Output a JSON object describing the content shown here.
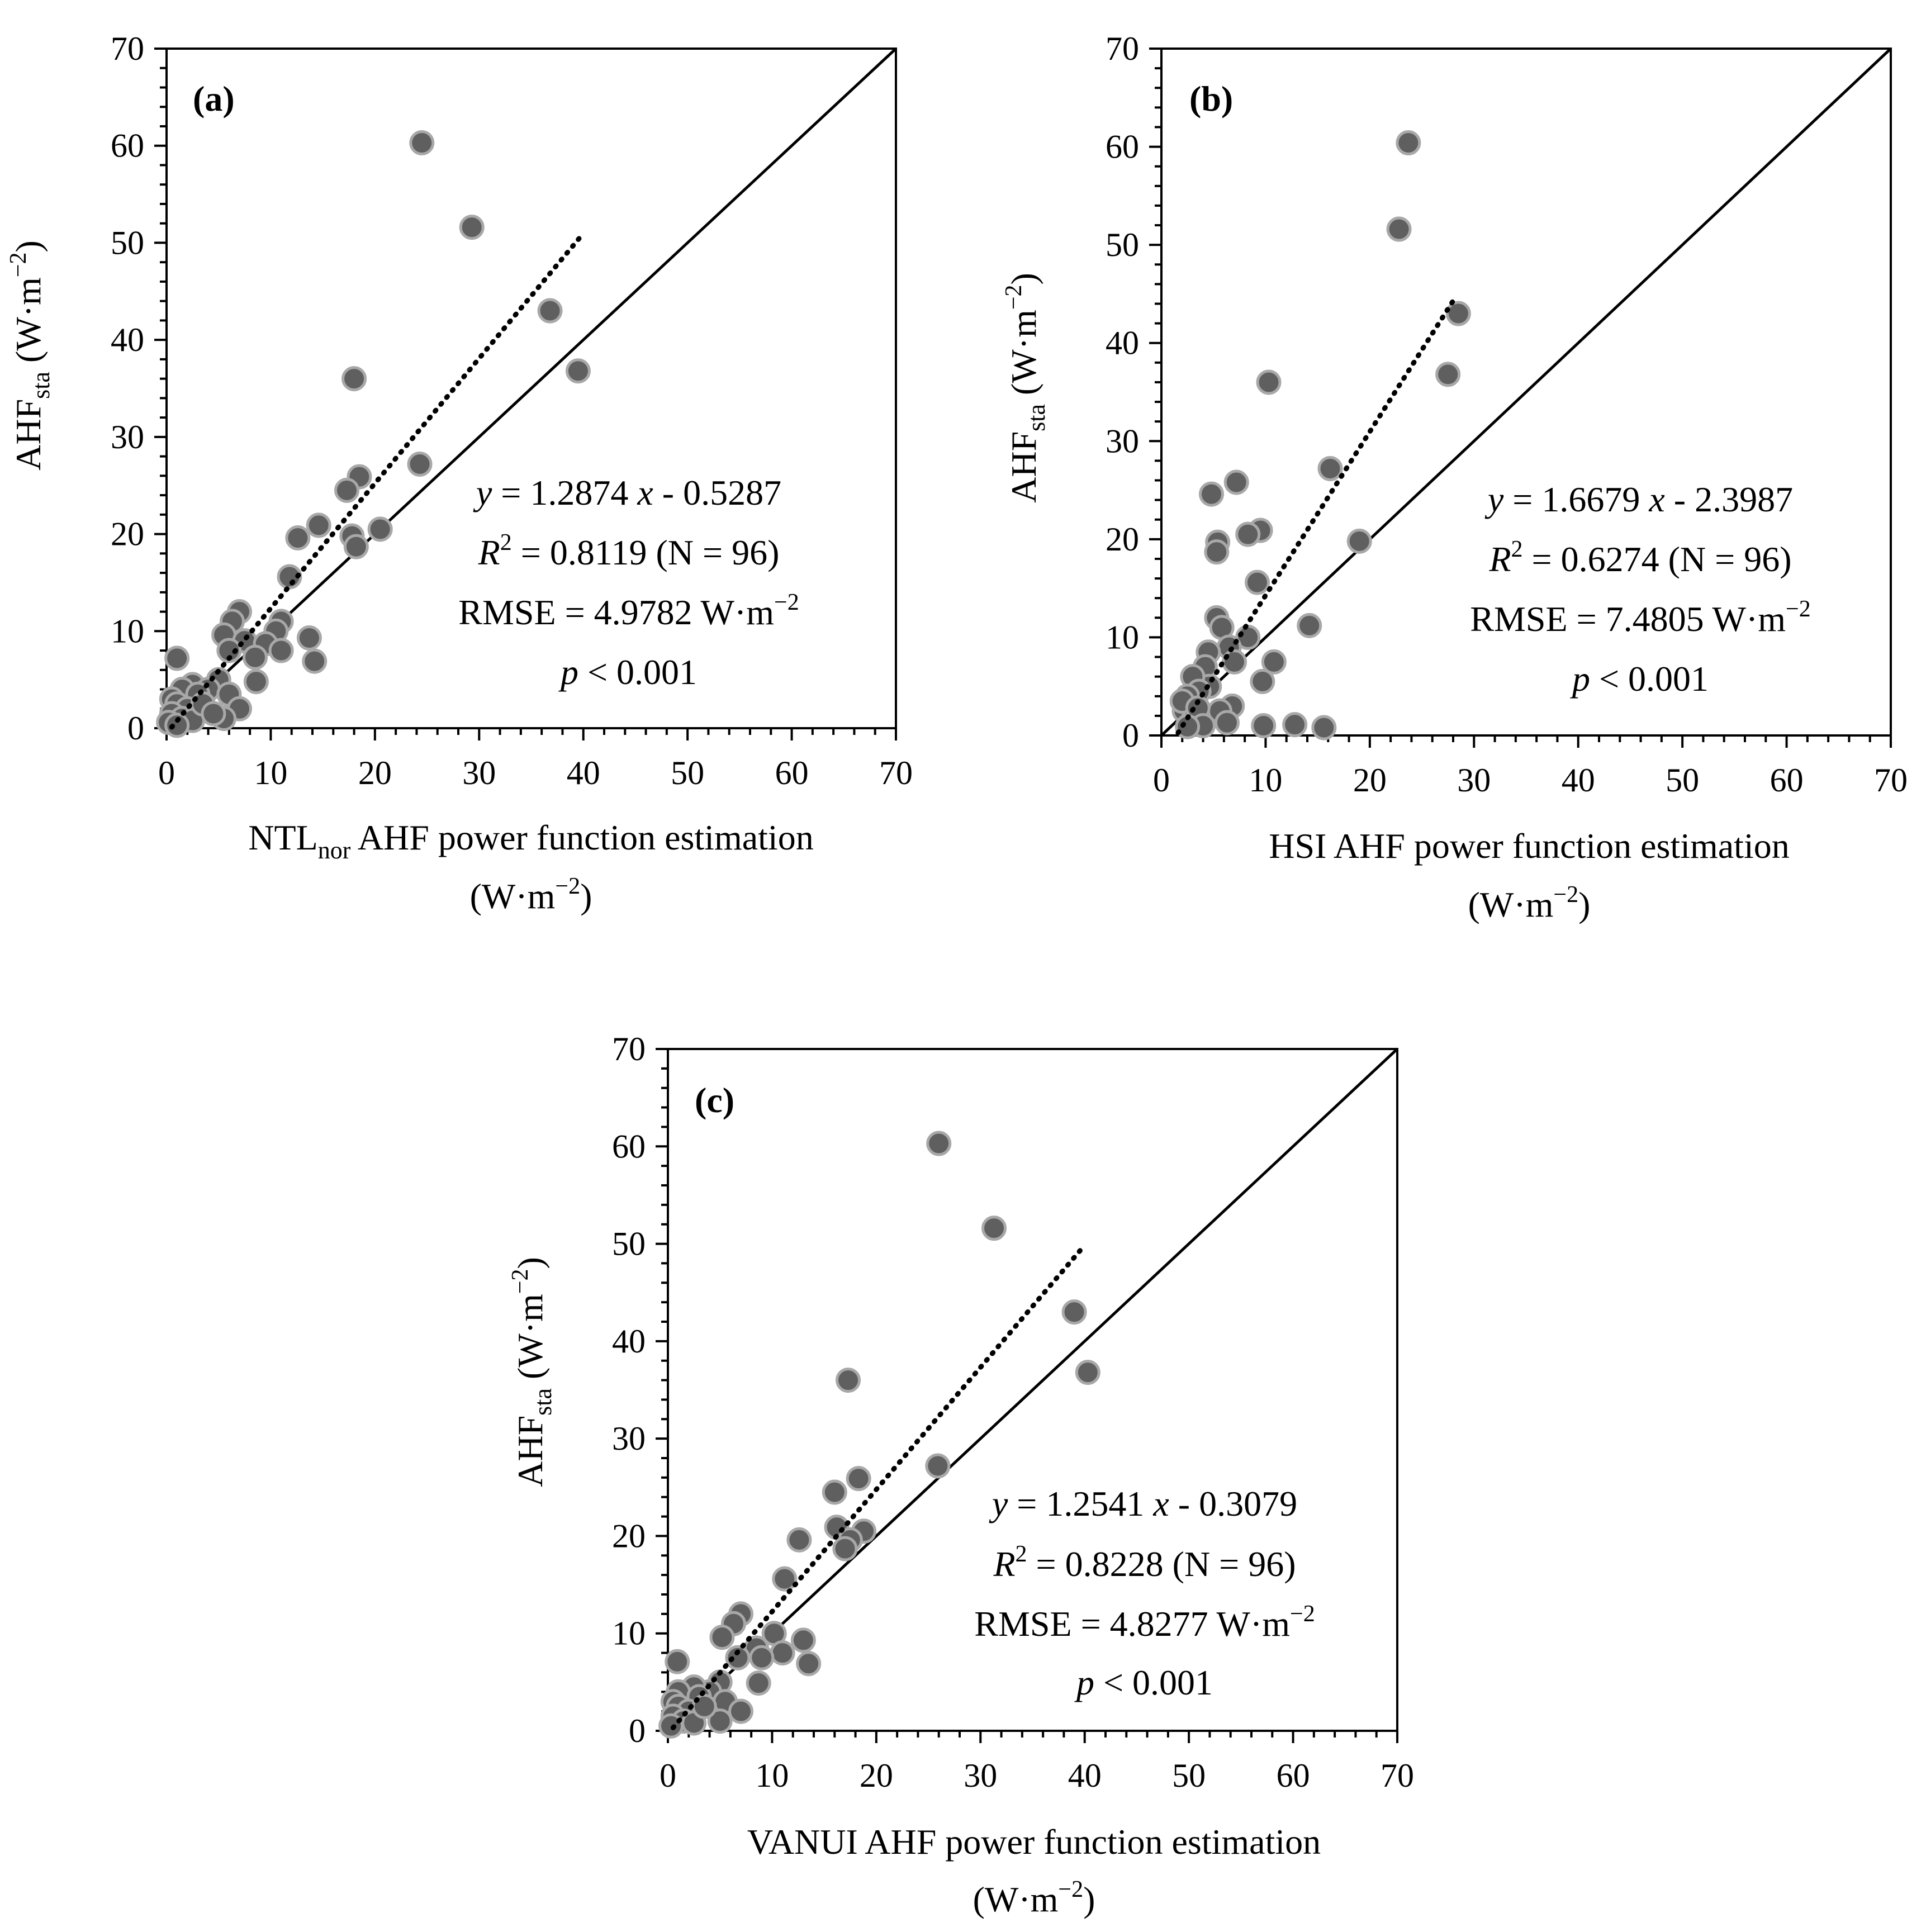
{
  "figure": {
    "chart_data": [
      {
        "type": "scatter",
        "panel": "(a)",
        "xlabel": "NTL",
        "xlabel_sub": "nor",
        "xlabel_rest": " AHF power function estimation",
        "xlabel_units": "(W·m",
        "units_exp": "−2",
        "units_close": ")",
        "ylabel": "AHF",
        "ylabel_sub": "sta",
        "ylabel_units": " (W·m",
        "xlim": [
          0,
          70
        ],
        "ylim": [
          0,
          70
        ],
        "xticks": [
          0,
          10,
          20,
          30,
          40,
          50,
          60,
          70
        ],
        "yticks": [
          0,
          10,
          20,
          30,
          40,
          50,
          60,
          70
        ],
        "fit": {
          "slope": 1.2874,
          "intercept": -0.5287,
          "x_range": [
            0.5,
            39.7
          ]
        },
        "stats": {
          "eq_y": "y",
          "eq_mid": " = 1.2874 ",
          "eq_x": "x",
          "eq_tail": " - 0.5287",
          "r2_R": "R",
          "r2_exp": "2",
          "r2_tail": " = 0.8119 (N = 96)",
          "rmse": "RMSE = 4.9782 W·m",
          "rmse_exp": "−2",
          "p_p": "p",
          "p_tail": " < 0.001"
        },
        "points": [
          [
            24.5,
            60.3
          ],
          [
            29.3,
            51.6
          ],
          [
            36.8,
            43.0
          ],
          [
            39.5,
            36.8
          ],
          [
            18.0,
            36.0
          ],
          [
            24.3,
            27.2
          ],
          [
            18.5,
            25.9
          ],
          [
            17.3,
            24.5
          ],
          [
            14.6,
            20.9
          ],
          [
            12.6,
            19.6
          ],
          [
            20.5,
            20.5
          ],
          [
            17.8,
            19.8
          ],
          [
            18.2,
            18.7
          ],
          [
            11.8,
            15.6
          ],
          [
            7.0,
            12.0
          ],
          [
            6.3,
            11.0
          ],
          [
            11.0,
            11.0
          ],
          [
            5.5,
            9.6
          ],
          [
            13.7,
            9.3
          ],
          [
            10.5,
            10.0
          ],
          [
            7.5,
            9.0
          ],
          [
            9.5,
            8.7
          ],
          [
            11.0,
            8.0
          ],
          [
            6.0,
            8.0
          ],
          [
            8.5,
            7.3
          ],
          [
            14.2,
            6.9
          ],
          [
            1.0,
            7.2
          ],
          [
            5.0,
            5.0
          ],
          [
            8.6,
            4.8
          ],
          [
            2.5,
            4.5
          ],
          [
            4.0,
            4.0
          ],
          [
            1.5,
            4.0
          ],
          [
            3.0,
            3.5
          ],
          [
            6.0,
            3.5
          ],
          [
            0.5,
            3.0
          ],
          [
            1.0,
            2.5
          ],
          [
            2.0,
            2.0
          ],
          [
            7.0,
            2.0
          ],
          [
            0.5,
            1.5
          ],
          [
            1.5,
            1.0
          ],
          [
            2.5,
            0.8
          ],
          [
            0.2,
            0.6
          ],
          [
            5.5,
            1.0
          ],
          [
            3.5,
            2.5
          ],
          [
            4.5,
            1.5
          ],
          [
            1.0,
            0.3
          ]
        ]
      },
      {
        "type": "scatter",
        "panel": "(b)",
        "xlabel": "HSI AHF power function estimation",
        "xlabel_units": "(W·m",
        "units_exp": "−2",
        "units_close": ")",
        "ylabel": "AHF",
        "ylabel_sub": "sta",
        "ylabel_units": " (W·m",
        "xlim": [
          0,
          70
        ],
        "ylim": [
          0,
          70
        ],
        "xticks": [
          0,
          10,
          20,
          30,
          40,
          50,
          60,
          70
        ],
        "yticks": [
          0,
          10,
          20,
          30,
          40,
          50,
          60,
          70
        ],
        "fit": {
          "slope": 1.6679,
          "intercept": -2.3987,
          "x_range": [
            1.6,
            28.0
          ]
        },
        "stats": {
          "eq_y": "y",
          "eq_mid": " = 1.6679 ",
          "eq_x": "x",
          "eq_tail": " - 2.3987",
          "r2_R": "R",
          "r2_exp": "2",
          "r2_tail": " = 0.6274 (N = 96)",
          "rmse": "RMSE = 7.4805 W·m",
          "rmse_exp": "−2",
          "p_p": "p",
          "p_tail": " < 0.001"
        },
        "points": [
          [
            23.7,
            60.4
          ],
          [
            22.8,
            51.6
          ],
          [
            28.5,
            43.0
          ],
          [
            27.5,
            36.8
          ],
          [
            10.3,
            36.0
          ],
          [
            16.2,
            27.2
          ],
          [
            7.2,
            25.8
          ],
          [
            4.8,
            24.6
          ],
          [
            9.5,
            20.9
          ],
          [
            8.3,
            20.5
          ],
          [
            5.4,
            19.7
          ],
          [
            19.0,
            19.8
          ],
          [
            5.3,
            18.7
          ],
          [
            9.2,
            15.6
          ],
          [
            5.3,
            12.0
          ],
          [
            14.2,
            11.2
          ],
          [
            5.8,
            11.0
          ],
          [
            8.3,
            10.0
          ],
          [
            10.8,
            7.5
          ],
          [
            6.5,
            9.0
          ],
          [
            4.5,
            8.5
          ],
          [
            7.0,
            7.5
          ],
          [
            4.2,
            7.0
          ],
          [
            9.7,
            5.5
          ],
          [
            4.6,
            5.0
          ],
          [
            3.0,
            6.0
          ],
          [
            3.6,
            4.5
          ],
          [
            2.5,
            4.0
          ],
          [
            6.8,
            3.0
          ],
          [
            5.6,
            2.5
          ],
          [
            2.2,
            2.5
          ],
          [
            3.0,
            1.5
          ],
          [
            9.8,
            1.0
          ],
          [
            12.8,
            1.1
          ],
          [
            15.6,
            0.8
          ],
          [
            6.3,
            1.3
          ],
          [
            2.0,
            3.5
          ],
          [
            3.5,
            2.8
          ],
          [
            4.0,
            1.0
          ],
          [
            2.5,
            0.9
          ]
        ]
      },
      {
        "type": "scatter",
        "panel": "(c)",
        "xlabel": "VANUI AHF power function estimation",
        "xlabel_units": "(W·m",
        "units_exp": "−2",
        "units_close": ")",
        "ylabel": "AHF",
        "ylabel_sub": "sta",
        "ylabel_units": " (W·m",
        "xlim": [
          0,
          70
        ],
        "ylim": [
          0,
          70
        ],
        "xticks": [
          0,
          10,
          20,
          30,
          40,
          50,
          60,
          70
        ],
        "yticks": [
          0,
          10,
          20,
          30,
          40,
          50,
          60,
          70
        ],
        "fit": {
          "slope": 1.2541,
          "intercept": -0.3079,
          "x_range": [
            0.5,
            39.9
          ]
        },
        "stats": {
          "eq_y": "y",
          "eq_mid": " = 1.2541 ",
          "eq_x": "x",
          "eq_tail": " - 0.3079",
          "r2_R": "R",
          "r2_exp": "2",
          "r2_tail": " = 0.8228 (N = 96)",
          "rmse": "RMSE = 4.8277 W·m",
          "rmse_exp": "−2",
          "p_p": "p",
          "p_tail": " < 0.001"
        },
        "points": [
          [
            26.0,
            60.3
          ],
          [
            31.3,
            51.6
          ],
          [
            39.0,
            43.0
          ],
          [
            40.3,
            36.8
          ],
          [
            17.3,
            36.0
          ],
          [
            25.9,
            27.2
          ],
          [
            18.3,
            25.9
          ],
          [
            16.0,
            24.5
          ],
          [
            16.2,
            20.9
          ],
          [
            12.6,
            19.6
          ],
          [
            18.8,
            20.5
          ],
          [
            17.5,
            19.6
          ],
          [
            17.0,
            18.7
          ],
          [
            11.2,
            15.6
          ],
          [
            7.0,
            12.0
          ],
          [
            6.3,
            11.0
          ],
          [
            10.2,
            10.0
          ],
          [
            5.2,
            9.6
          ],
          [
            13.0,
            9.3
          ],
          [
            8.5,
            8.5
          ],
          [
            11.0,
            8.0
          ],
          [
            9.0,
            7.5
          ],
          [
            13.5,
            6.9
          ],
          [
            6.7,
            7.5
          ],
          [
            0.9,
            7.1
          ],
          [
            8.7,
            4.9
          ],
          [
            5.0,
            5.0
          ],
          [
            4.0,
            4.0
          ],
          [
            2.5,
            4.5
          ],
          [
            1.0,
            4.0
          ],
          [
            3.0,
            3.5
          ],
          [
            5.5,
            3.0
          ],
          [
            0.5,
            3.0
          ],
          [
            1.0,
            2.5
          ],
          [
            2.0,
            2.0
          ],
          [
            7.0,
            2.0
          ],
          [
            0.5,
            1.5
          ],
          [
            1.5,
            1.0
          ],
          [
            2.5,
            0.8
          ],
          [
            5.0,
            1.0
          ],
          [
            3.5,
            2.5
          ],
          [
            0.3,
            0.5
          ]
        ]
      }
    ]
  }
}
